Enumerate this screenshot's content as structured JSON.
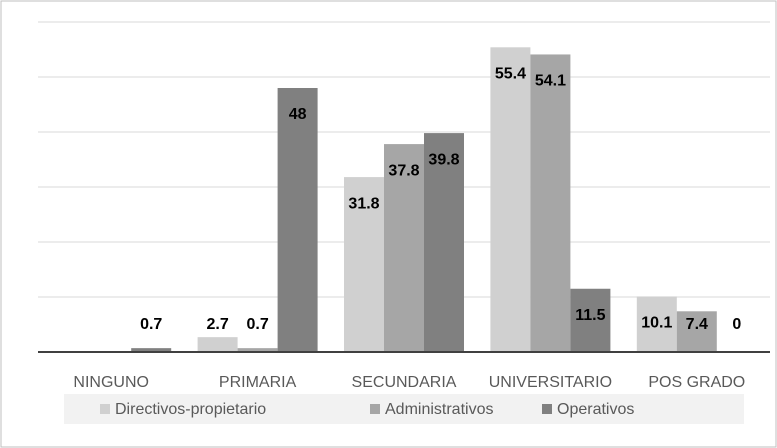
{
  "chart_data": {
    "type": "bar",
    "categories": [
      "NINGUNO",
      "PRIMARIA",
      "SECUNDARIA",
      "UNIVERSITARIO",
      "POS GRADO"
    ],
    "series": [
      {
        "name": "Directivos-propietario",
        "color": "#d0d0d0",
        "values": [
          0,
          2.7,
          31.8,
          55.4,
          10.1
        ],
        "value_labels": [
          null,
          "2.7",
          "31.8",
          "55.4",
          "10.1"
        ]
      },
      {
        "name": "Administrativos",
        "color": "#a6a6a6",
        "values": [
          0,
          0.7,
          37.8,
          54.1,
          7.4
        ],
        "value_labels": [
          null,
          "0.7",
          "37.8",
          "54.1",
          "7.4"
        ]
      },
      {
        "name": "Operativos",
        "color": "#808080",
        "values": [
          0.7,
          48,
          39.8,
          11.5,
          0
        ],
        "value_labels": [
          "0.7",
          "48",
          "39.8",
          "11.5",
          "0"
        ]
      }
    ],
    "ylim": [
      0,
      60
    ],
    "yticks": [
      0,
      10,
      20,
      30,
      40,
      50,
      60
    ],
    "grid": true
  }
}
